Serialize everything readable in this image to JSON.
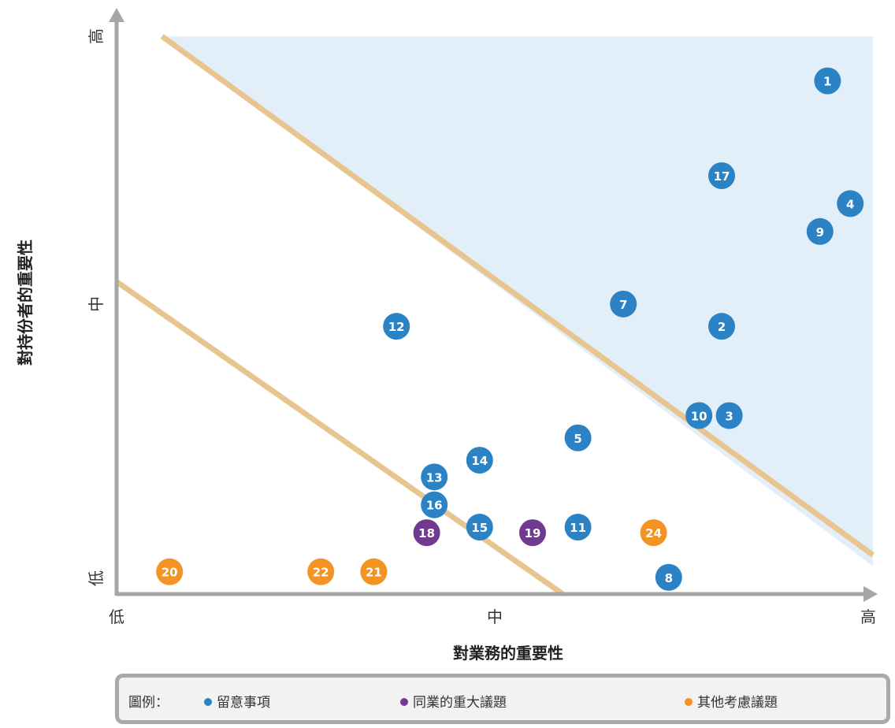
{
  "chart_data": {
    "type": "scatter",
    "xlabel": "對業務的重要性",
    "ylabel": "對持份者的重要性",
    "xlim": [
      0,
      1
    ],
    "ylim": [
      0,
      1
    ],
    "x_ticks": [
      {
        "value": 0,
        "label": "低"
      },
      {
        "value": 0.5,
        "label": "中"
      },
      {
        "value": 1,
        "label": "高"
      }
    ],
    "y_ticks": [
      {
        "value": 0,
        "label": "低"
      },
      {
        "value": 0.52,
        "label": "中"
      },
      {
        "value": 1,
        "label": "高"
      }
    ],
    "grid": false,
    "legend_position": "bottom",
    "legend_title": "圖例：",
    "series": [
      {
        "name": "留意事項",
        "color": "#2b82c5",
        "points": [
          {
            "label": "1",
            "x": 0.94,
            "y": 0.92
          },
          {
            "label": "2",
            "x": 0.8,
            "y": 0.48
          },
          {
            "label": "3",
            "x": 0.81,
            "y": 0.32
          },
          {
            "label": "4",
            "x": 0.97,
            "y": 0.7
          },
          {
            "label": "5",
            "x": 0.61,
            "y": 0.28
          },
          {
            "label": "7",
            "x": 0.67,
            "y": 0.52
          },
          {
            "label": "8",
            "x": 0.73,
            "y": 0.03
          },
          {
            "label": "9",
            "x": 0.93,
            "y": 0.65
          },
          {
            "label": "10",
            "x": 0.77,
            "y": 0.32
          },
          {
            "label": "11",
            "x": 0.61,
            "y": 0.12
          },
          {
            "label": "12",
            "x": 0.37,
            "y": 0.48
          },
          {
            "label": "13",
            "x": 0.42,
            "y": 0.21
          },
          {
            "label": "14",
            "x": 0.48,
            "y": 0.24
          },
          {
            "label": "15",
            "x": 0.48,
            "y": 0.12
          },
          {
            "label": "16",
            "x": 0.42,
            "y": 0.16
          },
          {
            "label": "17",
            "x": 0.8,
            "y": 0.75
          }
        ]
      },
      {
        "name": "同業的重大議題",
        "color": "#6f3a8f",
        "points": [
          {
            "label": "18",
            "x": 0.41,
            "y": 0.11
          },
          {
            "label": "19",
            "x": 0.55,
            "y": 0.11
          }
        ]
      },
      {
        "name": "其他考慮議題",
        "color": "#f39324",
        "points": [
          {
            "label": "20",
            "x": 0.07,
            "y": 0.04
          },
          {
            "label": "21",
            "x": 0.34,
            "y": 0.04
          },
          {
            "label": "22",
            "x": 0.27,
            "y": 0.04
          },
          {
            "label": "24",
            "x": 0.71,
            "y": 0.11
          }
        ]
      }
    ],
    "threshold_lines": [
      {
        "from": [
          0.06,
          1.0
        ],
        "to": [
          1.0,
          0.07
        ]
      },
      {
        "from": [
          0.0,
          0.56
        ],
        "to": [
          0.59,
          0.0
        ]
      }
    ],
    "shaded_region": {
      "color": "#e2eff8",
      "polygon": [
        [
          0.06,
          1.0
        ],
        [
          1.0,
          1.0
        ],
        [
          1.0,
          0.05
        ]
      ]
    },
    "threshold_line_color": "#e8c58f",
    "axis_color": "#a6a6a6"
  }
}
